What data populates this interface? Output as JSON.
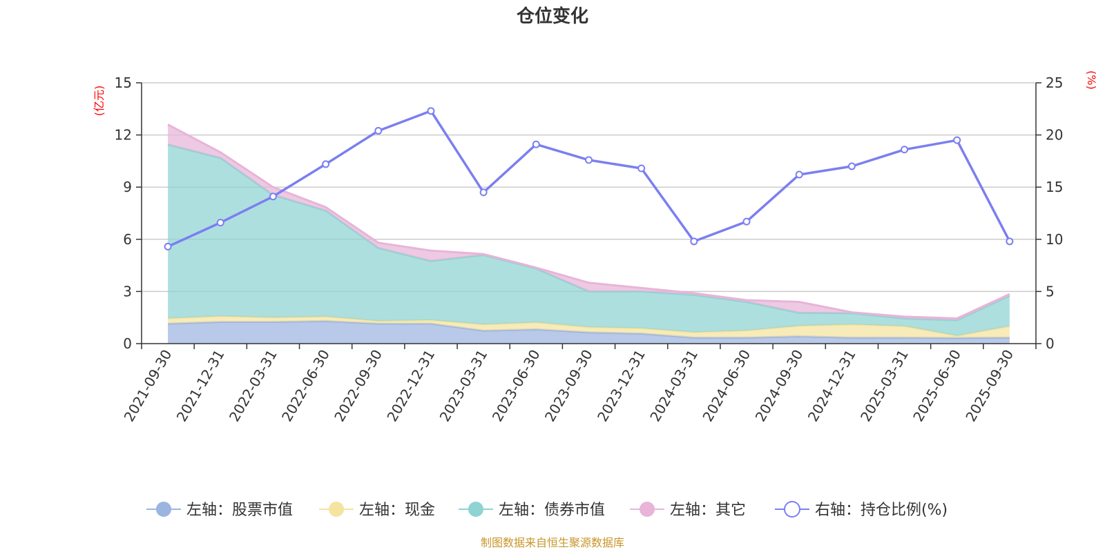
{
  "chart_data": {
    "type": "area",
    "title": "仓位变化",
    "source": "制图数据来自恒生聚源数据库",
    "left_unit": "(亿元)",
    "right_unit": "(%)",
    "left_ylim": [
      0,
      15
    ],
    "left_ticks": [
      0,
      3,
      6,
      9,
      12,
      15
    ],
    "right_ylim": [
      0,
      25
    ],
    "right_ticks": [
      0,
      5,
      10,
      15,
      20,
      25
    ],
    "categories": [
      "2021-09-30",
      "2021-12-31",
      "2022-03-31",
      "2022-06-30",
      "2022-09-30",
      "2022-12-31",
      "2023-03-31",
      "2023-06-30",
      "2023-09-30",
      "2023-12-31",
      "2024-03-31",
      "2024-06-30",
      "2024-09-30",
      "2024-12-31",
      "2025-03-31",
      "2025-06-30",
      "2025-09-30"
    ],
    "series": [
      {
        "name": "左轴：股票市值",
        "axis": "left",
        "color": "#9cb4e0",
        "values": [
          1.15,
          1.25,
          1.25,
          1.3,
          1.15,
          1.15,
          0.75,
          0.82,
          0.65,
          0.58,
          0.35,
          0.35,
          0.42,
          0.35,
          0.35,
          0.33,
          0.35
        ]
      },
      {
        "name": "左轴：现金",
        "axis": "left",
        "color": "#f5e3a0",
        "values": [
          0.3,
          0.33,
          0.25,
          0.25,
          0.15,
          0.2,
          0.35,
          0.4,
          0.3,
          0.3,
          0.3,
          0.4,
          0.6,
          0.75,
          0.65,
          0.12,
          0.65
        ]
      },
      {
        "name": "左轴：债券市值",
        "axis": "left",
        "color": "#8fd3d3",
        "values": [
          10.0,
          9.1,
          7.05,
          6.1,
          4.2,
          3.4,
          4.0,
          3.1,
          2.05,
          2.12,
          2.15,
          1.65,
          0.75,
          0.65,
          0.45,
          0.9,
          1.75
        ]
      },
      {
        "name": "左轴：其它",
        "axis": "left",
        "color": "#e8b4d8",
        "values": [
          1.15,
          0.32,
          0.45,
          0.2,
          0.3,
          0.6,
          0.05,
          0.05,
          0.5,
          0.2,
          0.1,
          0.1,
          0.63,
          0.05,
          0.1,
          0.1,
          0.1
        ]
      },
      {
        "name": "右轴：持仓比例(%)",
        "axis": "right",
        "color": "#7b7ff0",
        "values": [
          9.3,
          11.6,
          14.1,
          17.2,
          20.4,
          22.3,
          14.5,
          19.1,
          17.6,
          16.8,
          9.8,
          11.7,
          16.2,
          17.0,
          18.6,
          19.5,
          9.8
        ]
      }
    ]
  }
}
